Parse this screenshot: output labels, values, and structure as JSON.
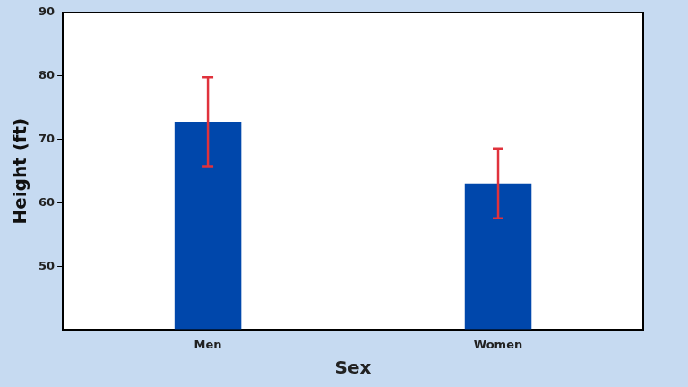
{
  "chart_data": {
    "type": "bar",
    "x_label": "Sex",
    "y_label": "Height (ft)",
    "categories": [
      "Men",
      "Women"
    ],
    "values": [
      72.8,
      63.1
    ],
    "errors": [
      7,
      5.5
    ],
    "color": "#0047ab",
    "ylim": [
      40,
      90
    ],
    "yticks": [
      50,
      60,
      70,
      80,
      90
    ],
    "grid": false
  }
}
